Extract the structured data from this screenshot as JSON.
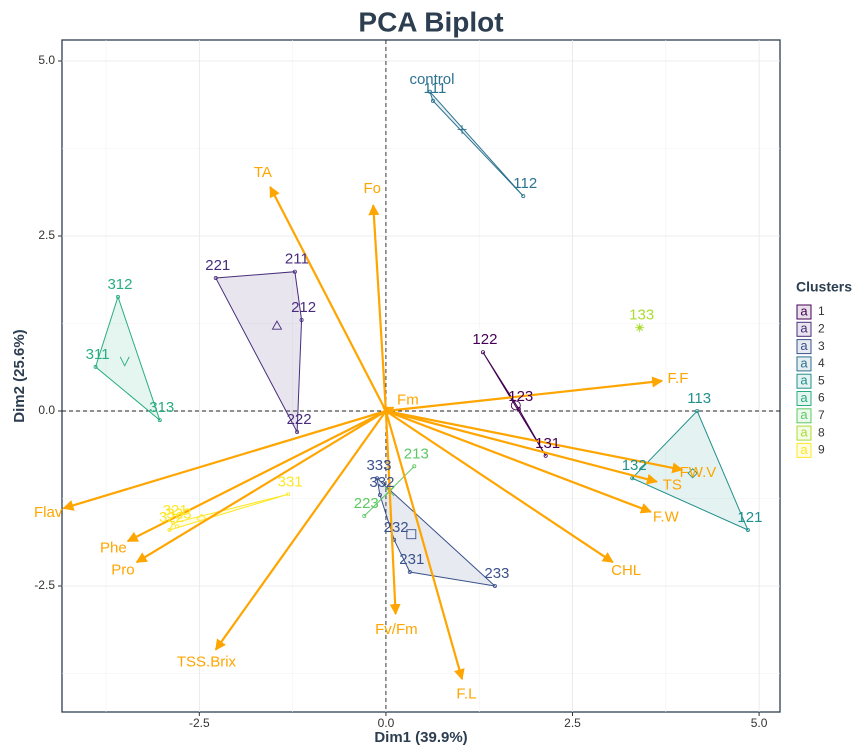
{
  "chart_data": {
    "type": "biplot",
    "title": "PCA Biplot",
    "x_label": "Dim1 (39.9%)",
    "y_label": "Dim2 (25.6%)",
    "xlim": [
      -4.34,
      5.28
    ],
    "ylim": [
      -4.3,
      5.3
    ],
    "xticks": [
      -2.5,
      {
        "value": 0,
        "label": "0.0"
      },
      2.5,
      {
        "value": 5,
        "label": "5.0"
      }
    ],
    "yticks": [
      -2.5,
      {
        "value": 0,
        "label": "0.0"
      },
      2.5,
      {
        "value": 5,
        "label": "5.0"
      }
    ],
    "grid": true,
    "legend_title": "Clusters",
    "legend_key": "a",
    "legend_position": "right",
    "arrow_color": "#FFA500",
    "variables": {
      "names": [
        "TA",
        "Fo",
        "F.F",
        "Fm",
        "FW.V",
        "TS",
        "F.W",
        "CHL",
        "F.L",
        "Fv/Fm",
        "TSS.Brix",
        "Pro",
        "Phe",
        "Flav"
      ],
      "x": [
        -1.55,
        -0.17,
        3.7,
        0.1,
        3.97,
        3.63,
        3.55,
        3.04,
        1.02,
        0.13,
        -2.28,
        -3.34,
        -3.46,
        -4.32
      ],
      "y": [
        3.2,
        2.94,
        0.43,
        0.05,
        -0.84,
        -1.01,
        -1.44,
        -2.16,
        -3.83,
        -2.9,
        -3.41,
        -2.16,
        -1.86,
        -1.39
      ]
    },
    "series": [
      {
        "name": "1",
        "color": "#440154",
        "labels": [
          "122",
          "123",
          "131"
        ],
        "x": [
          1.3,
          1.78,
          2.14
        ],
        "y": [
          0.84,
          0.03,
          -0.64
        ],
        "centroid_x": 1.74,
        "centroid_y": 0.08
      },
      {
        "name": "2",
        "color": "#472D7B",
        "labels": [
          "221",
          "211",
          "212",
          "222"
        ],
        "x": [
          -2.28,
          -1.22,
          -1.13,
          -1.19
        ],
        "y": [
          1.9,
          1.99,
          1.3,
          -0.3
        ],
        "centroid_x": -1.46,
        "centroid_y": 1.22
      },
      {
        "name": "3",
        "color": "#3B528B",
        "labels": [
          "333",
          "332",
          "232",
          "231",
          "233"
        ],
        "x": [
          -0.12,
          -0.08,
          0.11,
          0.32,
          1.46
        ],
        "y": [
          -0.96,
          -1.2,
          -1.84,
          -2.3,
          -2.5
        ],
        "centroid_x": 0.34,
        "centroid_y": -1.76
      },
      {
        "name": "4",
        "color": "#2C728E",
        "labels": [
          "control",
          "111",
          "112"
        ],
        "x": [
          0.59,
          0.63,
          1.84
        ],
        "y": [
          4.56,
          4.43,
          3.07
        ],
        "centroid_x": 1.02,
        "centroid_y": 4.02
      },
      {
        "name": "5",
        "color": "#21908C",
        "labels": [
          "113",
          "121",
          "132"
        ],
        "x": [
          4.17,
          4.85,
          3.3
        ],
        "y": [
          0.0,
          -1.7,
          -0.96
        ],
        "centroid_x": 4.11,
        "centroid_y": -0.89
      },
      {
        "name": "6",
        "color": "#27AD81",
        "labels": [
          "312",
          "311",
          "313"
        ],
        "x": [
          -3.59,
          -3.89,
          -3.03
        ],
        "y": [
          1.63,
          0.63,
          -0.13
        ],
        "centroid_x": -3.5,
        "centroid_y": 0.71
      },
      {
        "name": "7",
        "color": "#5DC863",
        "labels": [
          "213",
          "223"
        ],
        "x": [
          0.38,
          -0.29
        ],
        "y": [
          -0.79,
          -1.5
        ],
        "centroid_x": 0.05,
        "centroid_y": -1.15
      },
      {
        "name": "8",
        "color": "#AADC32",
        "labels": [
          "133"
        ],
        "x": [
          3.4
        ],
        "y": [
          1.19
        ],
        "centroid_x": 3.4,
        "centroid_y": 1.19
      },
      {
        "name": "9",
        "color": "#FDE725",
        "labels": [
          "321",
          "323",
          "322",
          "331"
        ],
        "x": [
          -2.85,
          -2.8,
          -2.9,
          -1.31
        ],
        "y": [
          -1.6,
          -1.65,
          -1.7,
          -1.19
        ],
        "centroid_x": -2.47,
        "centroid_y": -1.54
      }
    ]
  }
}
